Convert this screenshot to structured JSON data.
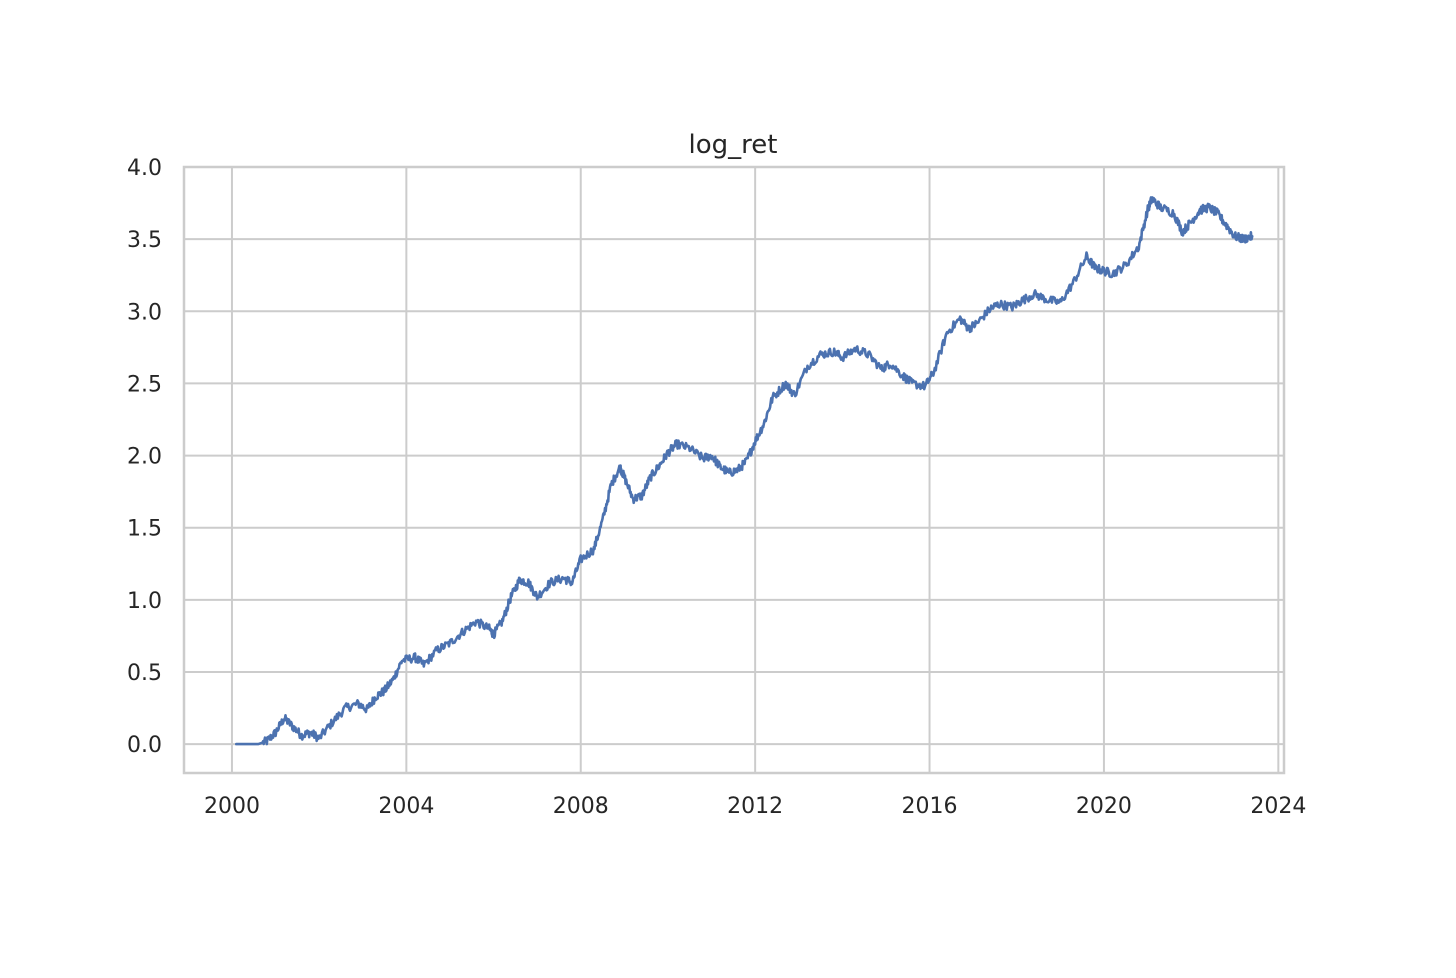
{
  "chart_data": {
    "type": "line",
    "title": "log_ret",
    "xlabel": "",
    "ylabel": "",
    "xlim": [
      1998.9,
      2024.13
    ],
    "ylim": [
      -0.2,
      4.0
    ],
    "x_ticks": [
      "2000",
      "2004",
      "2008",
      "2012",
      "2016",
      "2020",
      "2024"
    ],
    "y_ticks": [
      "0.0",
      "0.5",
      "1.0",
      "1.5",
      "2.0",
      "2.5",
      "3.0",
      "3.5",
      "4.0"
    ],
    "grid": true,
    "legend": "none",
    "colors": {
      "line": "#4c72b0",
      "grid": "#cccccc",
      "text": "#262626"
    },
    "series": [
      {
        "x": [
          2000.1,
          2000.6,
          2000.8,
          2001.0,
          2001.2,
          2001.4,
          2001.6,
          2001.8,
          2002.0,
          2002.3,
          2002.6,
          2002.9,
          2003.1,
          2003.3,
          2003.5,
          2003.7,
          2003.9,
          2004.2,
          2004.4,
          2004.7,
          2005.0,
          2005.3,
          2005.6,
          2005.9,
          2006.0,
          2006.2,
          2006.4,
          2006.6,
          2006.8,
          2007.0,
          2007.3,
          2007.6,
          2007.8,
          2008.0,
          2008.3,
          2008.5,
          2008.7,
          2008.9,
          2009.0,
          2009.2,
          2009.4,
          2009.6,
          2009.8,
          2010.0,
          2010.2,
          2010.5,
          2010.8,
          2011.0,
          2011.2,
          2011.4,
          2011.6,
          2011.8,
          2012.0,
          2012.2,
          2012.4,
          2012.7,
          2012.9,
          2013.2,
          2013.5,
          2013.8,
          2014.0,
          2014.3,
          2014.6,
          2014.9,
          2015.1,
          2015.4,
          2015.6,
          2015.9,
          2016.1,
          2016.4,
          2016.7,
          2016.9,
          2017.1,
          2017.4,
          2017.6,
          2017.9,
          2018.1,
          2018.4,
          2018.7,
          2019.0,
          2019.3,
          2019.6,
          2019.8,
          2020.0,
          2020.2,
          2020.5,
          2020.8,
          2021.0,
          2021.1,
          2021.3,
          2021.6,
          2021.8,
          2022.0,
          2022.2,
          2022.4,
          2022.6,
          2022.8,
          2023.0,
          2023.2,
          2023.4
        ],
        "y": [
          0.0,
          0.0,
          0.02,
          0.08,
          0.18,
          0.12,
          0.06,
          0.08,
          0.04,
          0.15,
          0.25,
          0.28,
          0.24,
          0.33,
          0.37,
          0.45,
          0.58,
          0.6,
          0.55,
          0.65,
          0.7,
          0.78,
          0.85,
          0.8,
          0.76,
          0.85,
          1.02,
          1.14,
          1.12,
          1.02,
          1.12,
          1.15,
          1.12,
          1.28,
          1.35,
          1.55,
          1.8,
          1.92,
          1.85,
          1.7,
          1.72,
          1.85,
          1.93,
          2.02,
          2.08,
          2.05,
          1.98,
          2.0,
          1.92,
          1.88,
          1.9,
          1.96,
          2.1,
          2.22,
          2.4,
          2.5,
          2.42,
          2.62,
          2.7,
          2.72,
          2.68,
          2.74,
          2.7,
          2.6,
          2.64,
          2.55,
          2.5,
          2.48,
          2.58,
          2.85,
          2.95,
          2.88,
          2.92,
          3.02,
          3.05,
          3.03,
          3.07,
          3.12,
          3.08,
          3.06,
          3.2,
          3.38,
          3.3,
          3.28,
          3.26,
          3.32,
          3.45,
          3.7,
          3.78,
          3.72,
          3.68,
          3.55,
          3.62,
          3.7,
          3.72,
          3.68,
          3.6,
          3.52,
          3.5,
          3.52
        ]
      }
    ]
  }
}
